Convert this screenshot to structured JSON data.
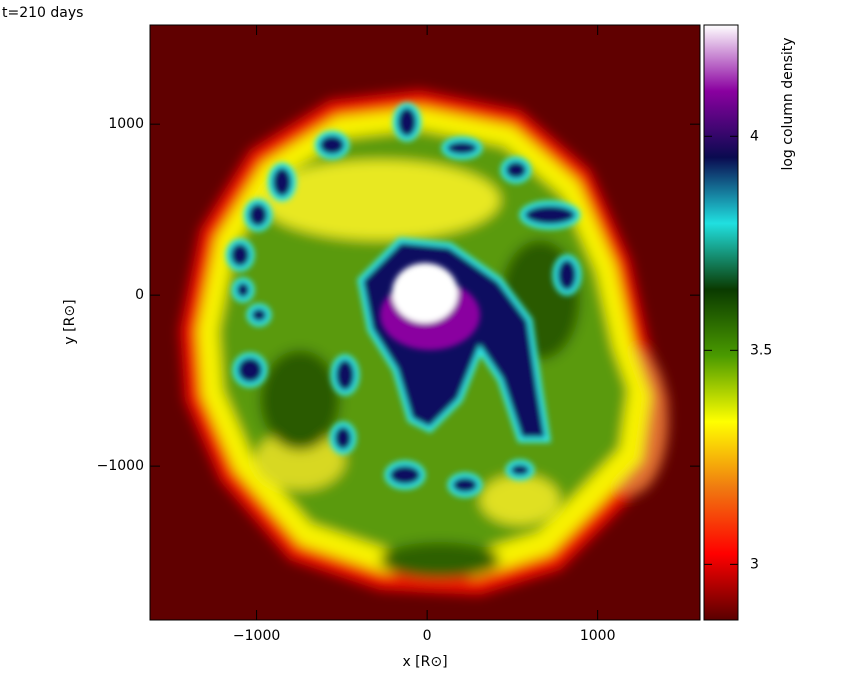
{
  "chart_data": {
    "type": "image",
    "title": "t=210 days",
    "x_label": "x [R⊙]",
    "y_label": "y [R⊙]",
    "colorbar_label": "log column density",
    "xlim": [
      -1625,
      1600
    ],
    "ylim": [
      -1900,
      1580
    ],
    "xticks": [
      {
        "value": -1000,
        "label": "−1000"
      },
      0,
      1000
    ],
    "yticks": [
      {
        "value": -1000,
        "label": "−1000"
      },
      0,
      1000
    ],
    "clim": [
      2.87,
      4.26
    ],
    "cticks": [
      3,
      3.5,
      4
    ],
    "colormap": [
      "#5a0000",
      "#ff0000",
      "#f07a10",
      "#ffff00",
      "#4a9a00",
      "#0a3a00",
      "#20e0e0",
      "#0a0a50",
      "#8a00a0",
      "#ffffff"
    ]
  }
}
